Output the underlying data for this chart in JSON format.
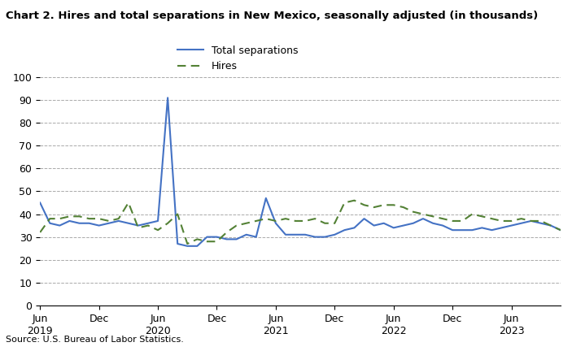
{
  "title": "Chart 2. Hires and total separations in New Mexico, seasonally adjusted (in thousands)",
  "source": "Source: U.S. Bureau of Labor Statistics.",
  "total_separations": [
    45,
    36,
    35,
    37,
    36,
    36,
    35,
    36,
    37,
    36,
    35,
    36,
    37,
    91,
    27,
    26,
    26,
    30,
    30,
    29,
    29,
    31,
    30,
    47,
    36,
    31,
    31,
    31,
    30,
    30,
    31,
    33,
    34,
    38,
    35,
    36,
    34,
    35,
    36,
    38,
    36,
    35,
    33,
    33,
    33,
    34,
    33,
    34,
    35,
    36,
    37,
    36,
    35,
    33
  ],
  "hires": [
    32,
    38,
    38,
    39,
    39,
    38,
    38,
    37,
    38,
    45,
    34,
    35,
    33,
    36,
    40,
    27,
    29,
    28,
    28,
    32,
    35,
    36,
    37,
    38,
    37,
    38,
    37,
    37,
    38,
    36,
    36,
    45,
    46,
    44,
    43,
    44,
    44,
    43,
    41,
    40,
    39,
    38,
    37,
    37,
    40,
    39,
    38,
    37,
    37,
    38,
    37,
    37,
    35,
    33
  ],
  "x_tick_labels": [
    "Jun\n2019",
    "Dec",
    "Jun\n2020",
    "Dec",
    "Jun\n2021",
    "Dec",
    "Jun\n2022",
    "Dec",
    "Jun\n2023"
  ],
  "x_tick_positions": [
    0,
    6,
    12,
    18,
    24,
    30,
    36,
    42,
    48
  ],
  "ylim": [
    0,
    100
  ],
  "yticks": [
    0,
    10,
    20,
    30,
    40,
    50,
    60,
    70,
    80,
    90,
    100
  ],
  "sep_color": "#4472C4",
  "hires_color": "#538135",
  "legend_sep": "Total separations",
  "legend_hires": "Hires"
}
